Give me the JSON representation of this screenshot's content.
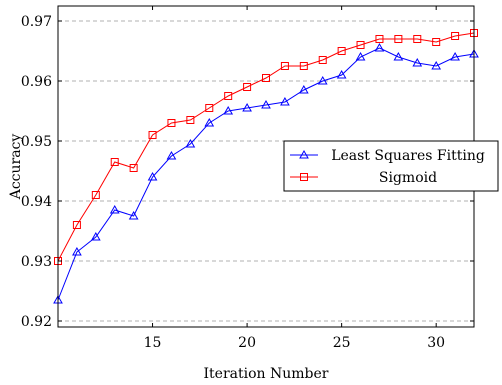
{
  "chart_data": {
    "type": "line",
    "xlabel": "Iteration Number",
    "ylabel": "Accuracy",
    "xlim": [
      10,
      32
    ],
    "ylim": [
      0.919,
      0.9725
    ],
    "xticks": [
      15,
      20,
      25,
      30
    ],
    "yticks": [
      0.92,
      0.93,
      0.94,
      0.95,
      0.96,
      0.97
    ],
    "x_tick_labels": [
      "15",
      "20",
      "25",
      "30"
    ],
    "y_tick_labels": [
      "0.92",
      "0.93",
      "0.94",
      "0.95",
      "0.96",
      "0.97"
    ],
    "grid": "horizontal dashed",
    "legend_position": "right",
    "x": [
      10,
      11,
      12,
      13,
      14,
      15,
      16,
      17,
      18,
      19,
      20,
      21,
      22,
      23,
      24,
      25,
      26,
      27,
      28,
      29,
      30,
      31,
      32
    ],
    "series": [
      {
        "name": "Least Squares Fitting",
        "color": "#0000ff",
        "marker": "triangle",
        "values": [
          0.9235,
          0.9315,
          0.934,
          0.9385,
          0.9375,
          0.944,
          0.9475,
          0.9495,
          0.953,
          0.955,
          0.9555,
          0.956,
          0.9565,
          0.9585,
          0.96,
          0.961,
          0.964,
          0.9655,
          0.964,
          0.963,
          0.9625,
          0.964,
          0.9645
        ]
      },
      {
        "name": "Sigmoid",
        "color": "#ff0000",
        "marker": "square",
        "values": [
          0.93,
          0.936,
          0.941,
          0.9465,
          0.9455,
          0.951,
          0.953,
          0.9535,
          0.9555,
          0.9575,
          0.959,
          0.9605,
          0.9625,
          0.9625,
          0.9635,
          0.965,
          0.966,
          0.967,
          0.967,
          0.967,
          0.9665,
          0.9675,
          0.968
        ]
      }
    ]
  }
}
